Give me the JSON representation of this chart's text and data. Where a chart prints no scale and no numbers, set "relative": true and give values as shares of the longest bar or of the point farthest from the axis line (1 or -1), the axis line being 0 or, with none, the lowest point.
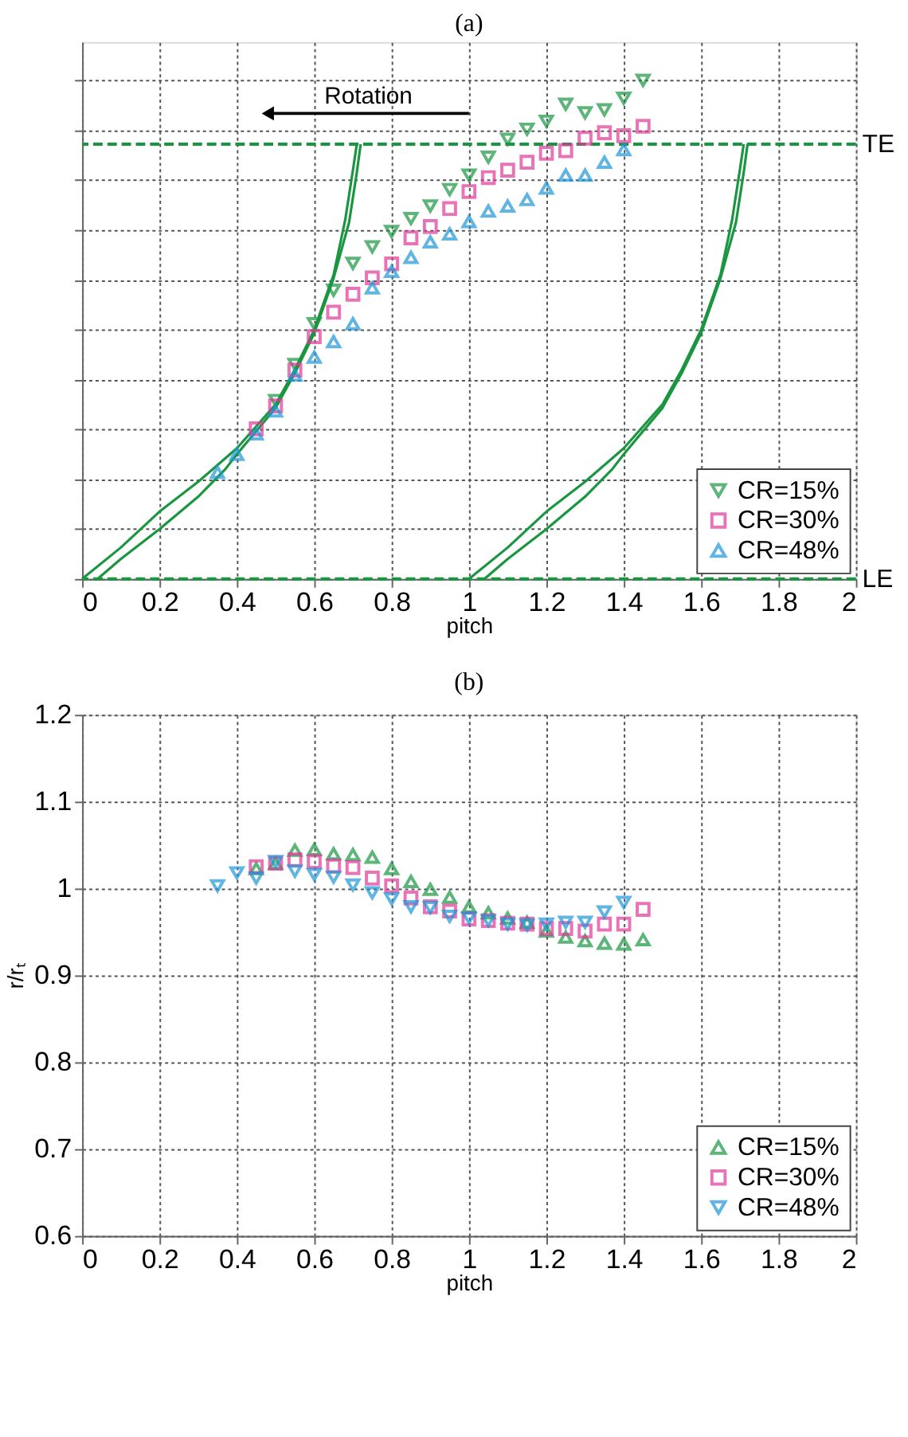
{
  "chart_data": [
    {
      "type": "scatter",
      "title": "(a)",
      "xlabel": "pitch",
      "relative": true,
      "xlim": [
        0,
        2
      ],
      "xticks": [
        0,
        0.2,
        0.4,
        0.6,
        0.8,
        1,
        1.2,
        1.4,
        1.6,
        1.8,
        2
      ],
      "grid": true,
      "legend": "bottom right",
      "tick_labels": "x",
      "annotations": [
        "Rotation"
      ],
      "ref_lines": [
        {
          "axis": "y",
          "value": 0.872,
          "label": "TE",
          "color": "#1a9641",
          "line_style": "dashed"
        },
        {
          "axis": "y",
          "value": 0,
          "label": "LE",
          "color": "#1a9641",
          "line_style": "dashed"
        }
      ],
      "series": [
        {
          "name": "CR=15%",
          "color": "#1a9641",
          "marker": "triangle-down",
          "x": [
            0.5,
            0.55,
            0.6,
            0.65,
            0.7,
            0.75,
            0.8,
            0.85,
            0.9,
            0.95,
            1.0,
            1.05,
            1.1,
            1.15,
            1.2,
            1.25,
            1.3,
            1.35,
            1.4,
            1.45
          ],
          "values": [
            0.358,
            0.43,
            0.512,
            0.579,
            0.633,
            0.666,
            0.697,
            0.723,
            0.748,
            0.781,
            0.81,
            0.846,
            0.882,
            0.902,
            0.918,
            0.952,
            0.935,
            0.941,
            0.964,
            1.0
          ]
        },
        {
          "name": "CR=30%",
          "color": "#e0399a",
          "marker": "square",
          "x": [
            0.45,
            0.5,
            0.55,
            0.6,
            0.65,
            0.7,
            0.75,
            0.8,
            0.85,
            0.9,
            0.95,
            1.0,
            1.05,
            1.1,
            1.15,
            1.2,
            1.25,
            1.3,
            1.35,
            1.4,
            1.45
          ],
          "values": [
            0.301,
            0.347,
            0.419,
            0.486,
            0.535,
            0.571,
            0.604,
            0.632,
            0.684,
            0.707,
            0.743,
            0.777,
            0.805,
            0.82,
            0.836,
            0.854,
            0.859,
            0.884,
            0.895,
            0.889,
            0.908
          ]
        },
        {
          "name": "CR=48%",
          "color": "#1e96d8",
          "marker": "triangle",
          "x": [
            0.35,
            0.4,
            0.45,
            0.5,
            0.55,
            0.6,
            0.65,
            0.7,
            0.75,
            0.8,
            0.85,
            0.9,
            0.95,
            1.0,
            1.05,
            1.1,
            1.15,
            1.2,
            1.25,
            1.3,
            1.35,
            1.4
          ],
          "values": [
            0.214,
            0.25,
            0.291,
            0.337,
            0.409,
            0.445,
            0.476,
            0.512,
            0.584,
            0.617,
            0.645,
            0.676,
            0.692,
            0.717,
            0.738,
            0.748,
            0.761,
            0.784,
            0.81,
            0.81,
            0.836,
            0.861
          ]
        },
        {
          "type": "line",
          "color": "#1a9641",
          "x": [
            0,
            0.1,
            0.2,
            0.3,
            0.4,
            0.5,
            0.55,
            0.6,
            0.65,
            0.68,
            0.7,
            0.71
          ],
          "values": [
            0,
            0.063,
            0.135,
            0.195,
            0.262,
            0.35,
            0.42,
            0.5,
            0.61,
            0.72,
            0.82,
            0.872
          ]
        },
        {
          "type": "line",
          "color": "#1a9641",
          "x": [
            0.04,
            0.1,
            0.2,
            0.3,
            0.37,
            0.4,
            0.5,
            0.55,
            0.6,
            0.65,
            0.69,
            0.71,
            0.72
          ],
          "values": [
            0,
            0.04,
            0.1,
            0.165,
            0.22,
            0.25,
            0.343,
            0.413,
            0.493,
            0.603,
            0.715,
            0.815,
            0.872
          ]
        },
        {
          "type": "line",
          "color": "#1a9641",
          "x": [
            1.0,
            1.1,
            1.2,
            1.3,
            1.4,
            1.5,
            1.55,
            1.6,
            1.65,
            1.68,
            1.7,
            1.71
          ],
          "values": [
            0,
            0.063,
            0.135,
            0.195,
            0.262,
            0.35,
            0.42,
            0.5,
            0.61,
            0.72,
            0.82,
            0.872
          ]
        },
        {
          "type": "line",
          "color": "#1a9641",
          "x": [
            1.04,
            1.1,
            1.2,
            1.3,
            1.37,
            1.4,
            1.5,
            1.55,
            1.6,
            1.65,
            1.69,
            1.71,
            1.72
          ],
          "values": [
            0,
            0.04,
            0.1,
            0.165,
            0.22,
            0.25,
            0.343,
            0.413,
            0.493,
            0.603,
            0.715,
            0.815,
            0.872
          ]
        }
      ]
    },
    {
      "type": "scatter",
      "title": "(b)",
      "xlabel": "pitch",
      "ylabel": "r/rₜ",
      "xlim": [
        0,
        2
      ],
      "xticks": [
        0,
        0.2,
        0.4,
        0.6,
        0.8,
        1,
        1.2,
        1.4,
        1.6,
        1.8,
        2
      ],
      "ylim": [
        0.6,
        1.2
      ],
      "yticks": [
        0.6,
        0.7,
        0.8,
        0.9,
        1,
        1.1,
        1.2
      ],
      "grid": true,
      "legend": "bottom right",
      "series": [
        {
          "name": "CR=15%",
          "color": "#1a9641",
          "marker": "triangle",
          "x": [
            0.45,
            0.5,
            0.55,
            0.6,
            0.65,
            0.7,
            0.75,
            0.8,
            0.85,
            0.9,
            0.95,
            1.0,
            1.05,
            1.1,
            1.15,
            1.2,
            1.25,
            1.3,
            1.35,
            1.4,
            1.45
          ],
          "values": [
            1.023,
            1.029,
            1.044,
            1.045,
            1.04,
            1.039,
            1.036,
            1.023,
            1.008,
            0.999,
            0.99,
            0.979,
            0.972,
            0.966,
            0.961,
            0.951,
            0.944,
            0.94,
            0.937,
            0.936,
            0.941
          ]
        },
        {
          "name": "CR=30%",
          "color": "#e0399a",
          "marker": "square",
          "x": [
            0.45,
            0.5,
            0.55,
            0.6,
            0.65,
            0.7,
            0.75,
            0.8,
            0.85,
            0.9,
            0.95,
            1.0,
            1.05,
            1.1,
            1.15,
            1.2,
            1.25,
            1.3,
            1.35,
            1.4,
            1.45
          ],
          "values": [
            1.025,
            1.029,
            1.033,
            1.031,
            1.026,
            1.024,
            1.012,
            1.003,
            0.989,
            0.979,
            0.974,
            0.965,
            0.963,
            0.96,
            0.959,
            0.954,
            0.954,
            0.951,
            0.959,
            0.959,
            0.976
          ]
        },
        {
          "name": "CR=48%",
          "color": "#1e96d8",
          "marker": "triangle-down",
          "x": [
            0.35,
            0.4,
            0.45,
            0.5,
            0.55,
            0.6,
            0.65,
            0.7,
            0.75,
            0.8,
            0.85,
            0.9,
            0.95,
            1.0,
            1.05,
            1.1,
            1.15,
            1.2,
            1.25,
            1.3,
            1.35,
            1.4
          ],
          "values": [
            1.003,
            1.018,
            1.012,
            1.031,
            1.02,
            1.016,
            1.013,
            1.004,
            0.995,
            0.988,
            0.979,
            0.978,
            0.968,
            0.966,
            0.963,
            0.959,
            0.958,
            0.959,
            0.961,
            0.961,
            0.973,
            0.984
          ]
        }
      ]
    }
  ]
}
